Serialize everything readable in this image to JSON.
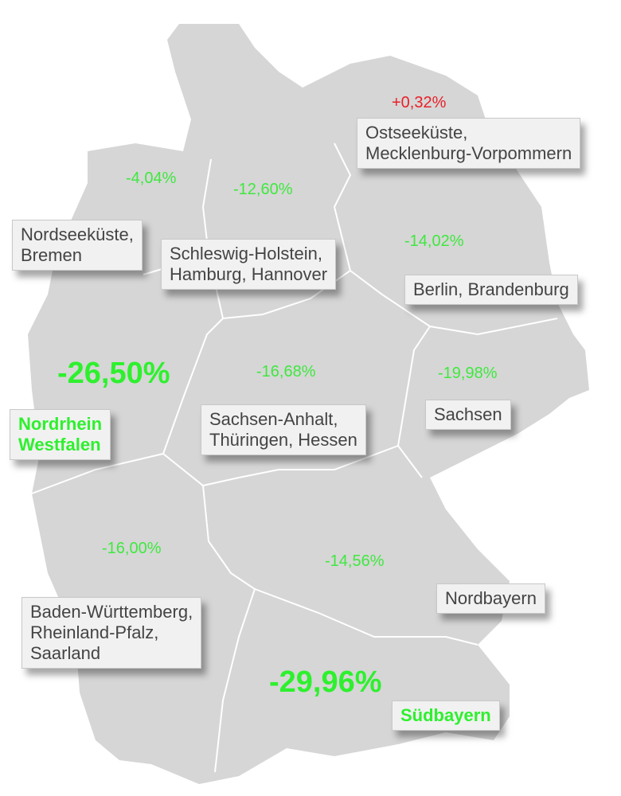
{
  "regions": [
    {
      "name_lines": [
        "Ostseeküste,",
        "Mecklenburg-Vorpommern"
      ],
      "value": "+0,32%",
      "color": "#e8202a",
      "highlight": false
    },
    {
      "name_lines": [
        "Nordseeküste,",
        "Bremen"
      ],
      "value": "-4,04%",
      "color": "#3fe83f",
      "highlight": false
    },
    {
      "name_lines": [
        "Schleswig-Holstein,",
        "Hamburg, Hannover"
      ],
      "value": "-12,60%",
      "color": "#3fe83f",
      "highlight": false
    },
    {
      "name_lines": [
        "Berlin, Brandenburg"
      ],
      "value": "-14,02%",
      "color": "#3fe83f",
      "highlight": false
    },
    {
      "name_lines": [
        "Nordrhein",
        "Westfalen"
      ],
      "value": "-26,50%",
      "color": "#2ef02e",
      "highlight": true
    },
    {
      "name_lines": [
        "Sachsen-Anhalt,",
        "Thüringen, Hessen"
      ],
      "value": "-16,68%",
      "color": "#3fe83f",
      "highlight": false
    },
    {
      "name_lines": [
        "Sachsen"
      ],
      "value": "-19,98%",
      "color": "#3fe83f",
      "highlight": false
    },
    {
      "name_lines": [
        "Baden-Württemberg,",
        "Rheinland-Pfalz,",
        "Saarland"
      ],
      "value": "-16,00%",
      "color": "#3fe83f",
      "highlight": false
    },
    {
      "name_lines": [
        "Nordbayern"
      ],
      "value": "-14,56%",
      "color": "#3fe83f",
      "highlight": false
    },
    {
      "name_lines": [
        "Südbayern"
      ],
      "value": "-29,96%",
      "color": "#2ef02e",
      "highlight": true
    }
  ]
}
